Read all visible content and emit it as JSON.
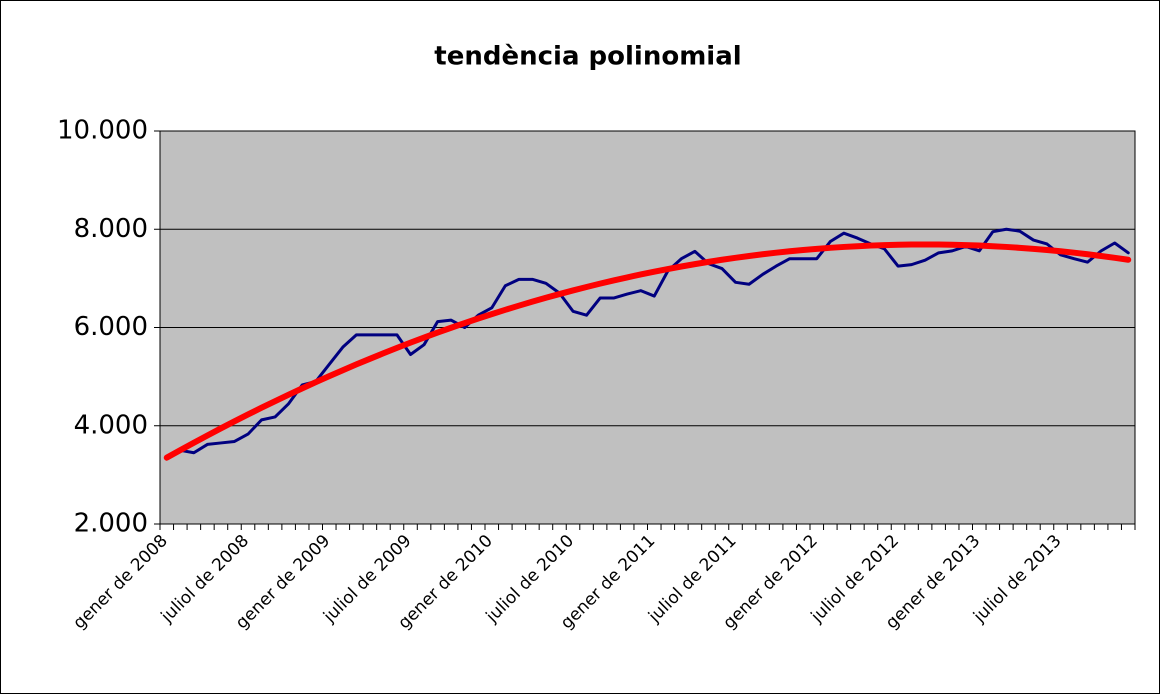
{
  "chart_data": {
    "type": "line",
    "title": "tendència polinomial",
    "categories": [
      "gener de 2008",
      null,
      null,
      null,
      null,
      null,
      "juliol de 2008",
      null,
      null,
      null,
      null,
      null,
      "gener de 2009",
      null,
      null,
      null,
      null,
      null,
      "juliol de 2009",
      null,
      null,
      null,
      null,
      null,
      "gener de 2010",
      null,
      null,
      null,
      null,
      null,
      "juliol de 2010",
      null,
      null,
      null,
      null,
      null,
      "gener de 2011",
      null,
      null,
      null,
      null,
      null,
      "juliol de 2011",
      null,
      null,
      null,
      null,
      null,
      "gener de 2012",
      null,
      null,
      null,
      null,
      null,
      "juliol de 2012",
      null,
      null,
      null,
      null,
      null,
      "gener de 2013",
      null,
      null,
      null,
      null,
      null,
      "juliol de 2013",
      null,
      null,
      null,
      null,
      null
    ],
    "series": [
      {
        "color": "#000080",
        "width": 3,
        "values": [
          3380,
          3500,
          3450,
          3620,
          3650,
          3680,
          3830,
          4120,
          4180,
          4450,
          4830,
          4900,
          5250,
          5600,
          5850,
          5850,
          5850,
          5850,
          5450,
          5650,
          6120,
          6150,
          6000,
          6250,
          6400,
          6850,
          6980,
          6980,
          6900,
          6700,
          6330,
          6250,
          6600,
          6600,
          6680,
          6750,
          6640,
          7150,
          7400,
          7550,
          7300,
          7200,
          6920,
          6880,
          7080,
          7250,
          7400,
          7400,
          7400,
          7750,
          7920,
          7820,
          7700,
          7600,
          7250,
          7280,
          7370,
          7520,
          7560,
          7650,
          7560,
          7950,
          8000,
          7960,
          7780,
          7700,
          7480,
          7400,
          7330,
          7560,
          7720,
          7520
        ]
      },
      {
        "color": "#ff0000",
        "width": 6,
        "values": [
          3350,
          3503,
          3654,
          3802,
          3948,
          4090,
          4230,
          4367,
          4501,
          4633,
          4761,
          4887,
          5011,
          5131,
          5249,
          5363,
          5476,
          5585,
          5692,
          5795,
          5896,
          5995,
          6090,
          6183,
          6273,
          6360,
          6444,
          6526,
          6605,
          6681,
          6754,
          6825,
          6893,
          6958,
          7020,
          7080,
          7136,
          7190,
          7242,
          7290,
          7336,
          7379,
          7419,
          7456,
          7491,
          7523,
          7552,
          7578,
          7601,
          7622,
          7640,
          7655,
          7668,
          7678,
          7684,
          7689,
          7690,
          7689,
          7684,
          7678,
          7668,
          7655,
          7640,
          7622,
          7601,
          7578,
          7552,
          7523,
          7491,
          7456,
          7419,
          7379
        ]
      }
    ],
    "ylim": [
      2000,
      10000
    ],
    "yticks": [
      {
        "value": 2000,
        "label": "2.000"
      },
      {
        "value": 4000,
        "label": "4.000"
      },
      {
        "value": 6000,
        "label": "6.000"
      },
      {
        "value": 8000,
        "label": "8.000"
      },
      {
        "value": 10000,
        "label": "10.000"
      }
    ],
    "grid": true,
    "plot_background": "#c0c0c0"
  }
}
